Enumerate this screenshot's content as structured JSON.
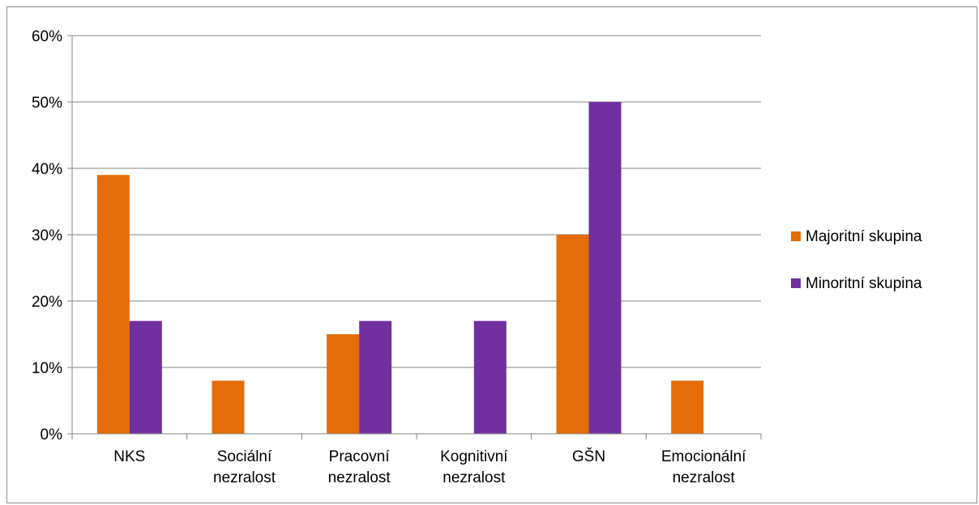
{
  "chart_data": {
    "type": "bar",
    "categories": [
      [
        "NKS"
      ],
      [
        "Sociální",
        "nezralost"
      ],
      [
        "Pracovní",
        "nezralost"
      ],
      [
        "Kognitivní",
        "nezralost"
      ],
      [
        "GŠN"
      ],
      [
        "Emocionální",
        "nezralost"
      ]
    ],
    "series": [
      {
        "name": "Majoritní skupina",
        "color": "#e46c0a",
        "values": [
          39,
          8,
          15,
          0,
          30,
          8
        ]
      },
      {
        "name": "Minoritní skupina",
        "color": "#7030a0",
        "values": [
          17,
          0,
          17,
          17,
          50,
          0
        ]
      }
    ],
    "y_ticks": [
      "0%",
      "10%",
      "20%",
      "30%",
      "40%",
      "50%",
      "60%"
    ],
    "ylim": [
      0,
      60
    ],
    "grid": true,
    "legend_position": "right",
    "title": "",
    "xlabel": "",
    "ylabel": ""
  }
}
